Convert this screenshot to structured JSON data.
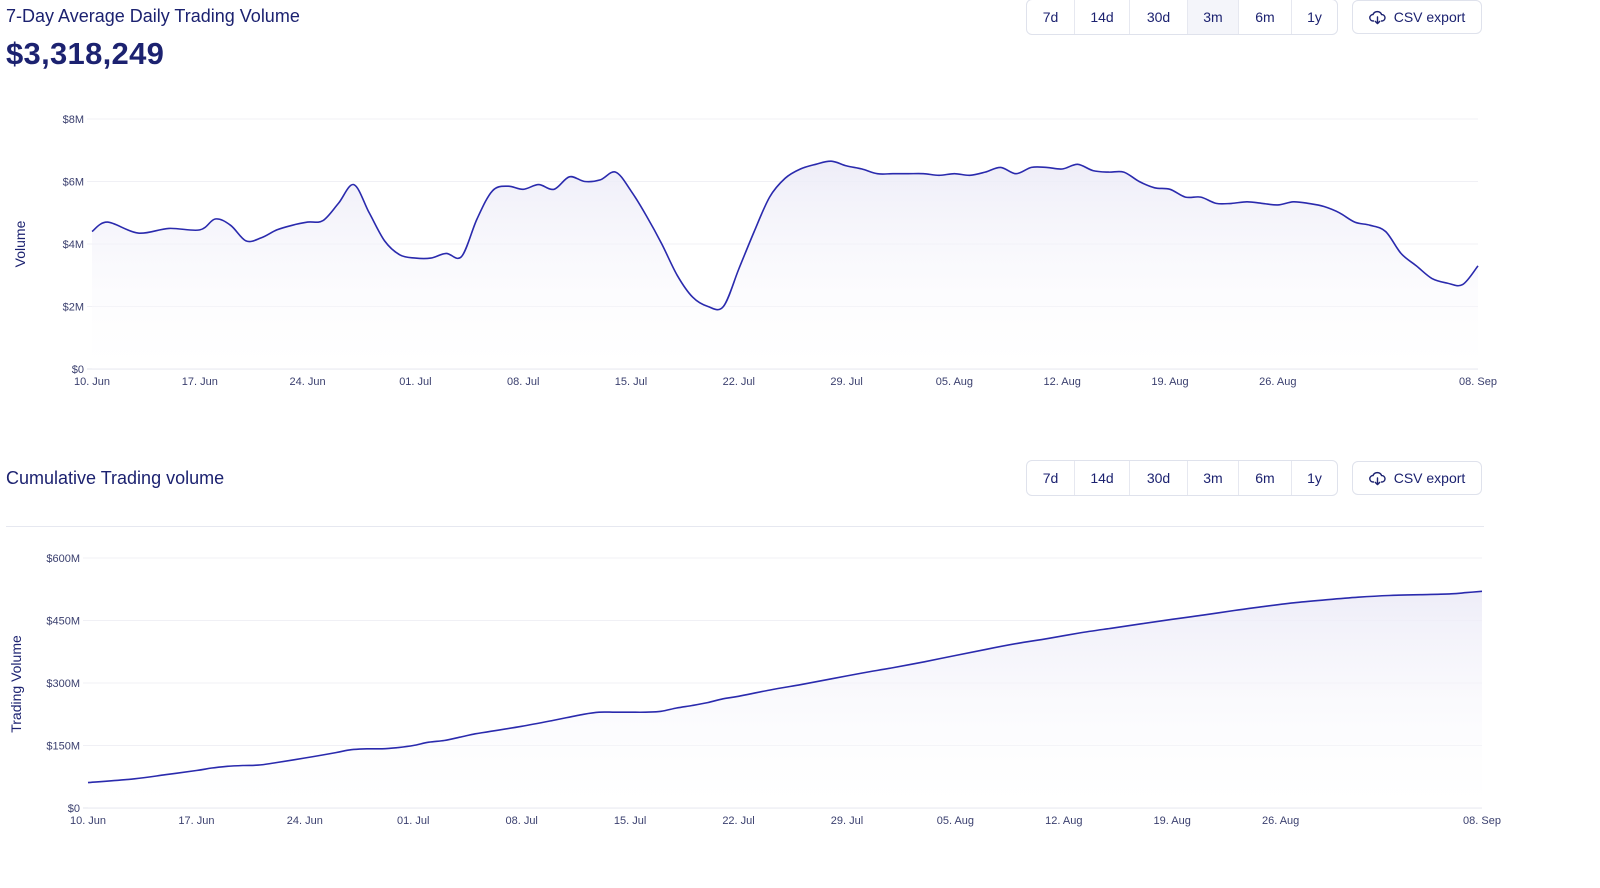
{
  "colors": {
    "line": "#2a2aad",
    "text": "#1c2270",
    "grid": "#ececf4",
    "fill_top": "#ecebf7"
  },
  "volume_panel": {
    "title": "7-Day Average Daily Trading Volume",
    "value": "$3,318,249",
    "ranges": [
      "7d",
      "14d",
      "30d",
      "3m",
      "6m",
      "1y"
    ],
    "active_range": "3m",
    "csv_label": "CSV export",
    "csv_icon": "cloud-download-icon"
  },
  "cumulative_panel": {
    "title": "Cumulative Trading volume",
    "ranges": [
      "7d",
      "14d",
      "30d",
      "3m",
      "6m",
      "1y"
    ],
    "csv_label": "CSV export",
    "csv_icon": "cloud-download-icon"
  },
  "chart_data": [
    {
      "type": "area",
      "title": "7-Day Average Daily Trading Volume",
      "ylabel": "Volume",
      "xlabel": "",
      "ylim": [
        0,
        8000000
      ],
      "yticks": [
        0,
        2000000,
        4000000,
        6000000,
        8000000
      ],
      "ytick_labels": [
        "$0",
        "$2M",
        "$4M",
        "$6M",
        "$8M"
      ],
      "xlim": [
        0,
        90
      ],
      "xticks": [
        0,
        7,
        14,
        21,
        28,
        35,
        42,
        49,
        56,
        63,
        70,
        77,
        90
      ],
      "xtick_labels": [
        "10. Jun",
        "17. Jun",
        "24. Jun",
        "01. Jul",
        "08. Jul",
        "15. Jul",
        "22. Jul",
        "29. Jul",
        "05. Aug",
        "12. Aug",
        "19. Aug",
        "26. Aug",
        "08. Sep"
      ],
      "grid": true,
      "series": [
        {
          "x": [
            0,
            1,
            3,
            5,
            7,
            8,
            9,
            10,
            11,
            12,
            13,
            14,
            15,
            16,
            17,
            18,
            19,
            20,
            21,
            22,
            23,
            24,
            25,
            26,
            27,
            28,
            29,
            30,
            31,
            32,
            33,
            34,
            35,
            36,
            37,
            38,
            39,
            40,
            41,
            42,
            43,
            44,
            45,
            46,
            47,
            48,
            49,
            50,
            51,
            52,
            53,
            54,
            55,
            56,
            57,
            58,
            59,
            60,
            61,
            62,
            63,
            64,
            65,
            66,
            67,
            68,
            69,
            70,
            71,
            72,
            73,
            74,
            75,
            76,
            77,
            78,
            79,
            80,
            81,
            82,
            83,
            84,
            85,
            86,
            87,
            88,
            89,
            90
          ],
          "values": [
            4400000,
            4700000,
            4350000,
            4500000,
            4450000,
            4800000,
            4600000,
            4100000,
            4200000,
            4450000,
            4600000,
            4700000,
            4750000,
            5300000,
            5900000,
            5000000,
            4100000,
            3650000,
            3550000,
            3550000,
            3700000,
            3600000,
            4800000,
            5700000,
            5850000,
            5750000,
            5900000,
            5750000,
            6150000,
            6000000,
            6050000,
            6300000,
            5700000,
            4900000,
            4000000,
            3000000,
            2300000,
            2000000,
            2000000,
            3200000,
            4400000,
            5500000,
            6100000,
            6400000,
            6550000,
            6650000,
            6500000,
            6400000,
            6250000,
            6250000,
            6250000,
            6250000,
            6200000,
            6250000,
            6200000,
            6300000,
            6450000,
            6250000,
            6450000,
            6450000,
            6400000,
            6550000,
            6350000,
            6300000,
            6300000,
            6000000,
            5800000,
            5750000,
            5500000,
            5500000,
            5300000,
            5300000,
            5350000,
            5300000,
            5250000,
            5350000,
            5300000,
            5200000,
            5000000,
            4700000,
            4600000,
            4400000,
            3700000,
            3300000,
            2900000,
            2750000,
            2700000,
            3300000
          ]
        }
      ]
    },
    {
      "type": "area",
      "title": "Cumulative Trading volume",
      "ylabel": "Trading Volume",
      "xlabel": "",
      "ylim": [
        0,
        600000000
      ],
      "yticks": [
        0,
        150000000,
        300000000,
        450000000,
        600000000
      ],
      "ytick_labels": [
        "$0",
        "$150M",
        "$300M",
        "$450M",
        "$600M"
      ],
      "xlim": [
        0,
        90
      ],
      "xticks": [
        0,
        7,
        14,
        21,
        28,
        35,
        42,
        49,
        56,
        63,
        70,
        77,
        90
      ],
      "xtick_labels": [
        "10. Jun",
        "17. Jun",
        "24. Jun",
        "01. Jul",
        "08. Jul",
        "15. Jul",
        "22. Jul",
        "29. Jul",
        "05. Aug",
        "12. Aug",
        "19. Aug",
        "26. Aug",
        "08. Sep"
      ],
      "grid": true,
      "series": [
        {
          "x": [
            0,
            3,
            5,
            7,
            8,
            9,
            10,
            11,
            12,
            14,
            16,
            17,
            18,
            19,
            20,
            21,
            22,
            23,
            24,
            25,
            26,
            28,
            30,
            32,
            33,
            34,
            35,
            36,
            37,
            38,
            39,
            40,
            41,
            42,
            44,
            46,
            48,
            50,
            52,
            54,
            56,
            58,
            60,
            62,
            64,
            66,
            68,
            70,
            72,
            74,
            76,
            78,
            80,
            82,
            84,
            86,
            88,
            89,
            90
          ],
          "values": [
            61000000,
            70000000,
            80000000,
            90000000,
            96000000,
            100000000,
            102000000,
            103000000,
            108000000,
            120000000,
            133000000,
            140000000,
            142000000,
            142000000,
            145000000,
            150000000,
            158000000,
            162000000,
            170000000,
            178000000,
            184000000,
            196000000,
            210000000,
            225000000,
            230000000,
            230000000,
            230000000,
            230000000,
            232000000,
            240000000,
            246000000,
            253000000,
            262000000,
            268000000,
            283000000,
            296000000,
            310000000,
            324000000,
            337000000,
            351000000,
            366000000,
            381000000,
            395000000,
            407000000,
            420000000,
            431000000,
            442000000,
            453000000,
            463000000,
            474000000,
            484000000,
            493000000,
            500000000,
            506000000,
            510000000,
            512000000,
            514000000,
            517000000,
            520000000
          ]
        }
      ]
    }
  ]
}
